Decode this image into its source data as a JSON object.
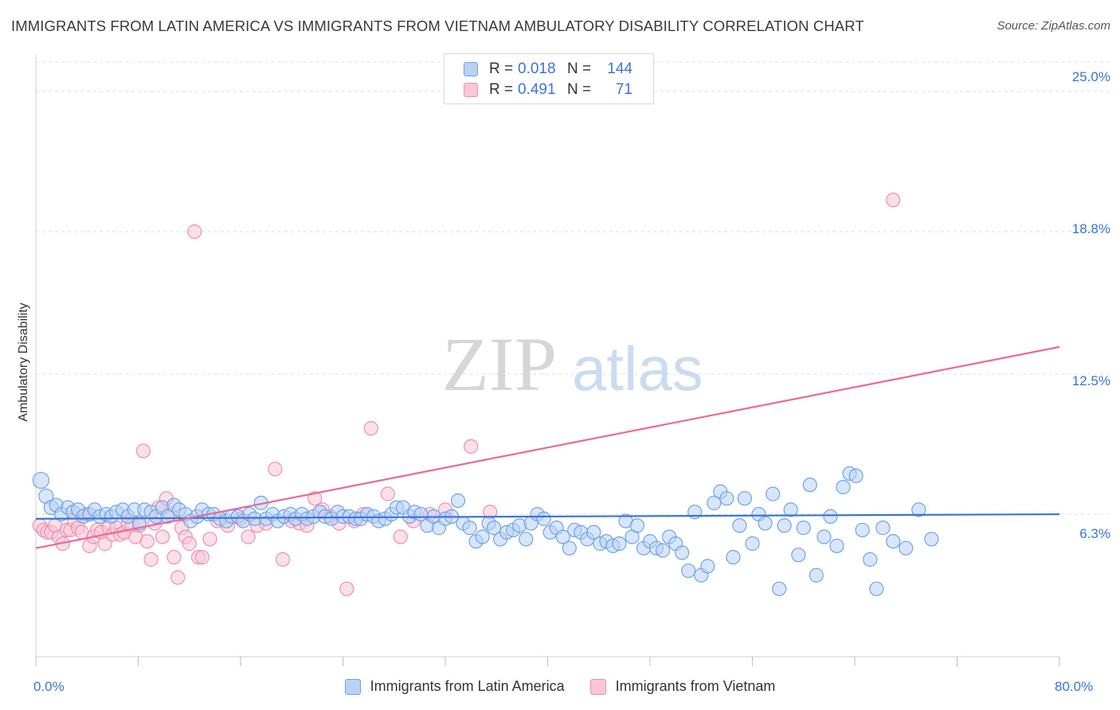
{
  "title": "IMMIGRANTS FROM LATIN AMERICA VS IMMIGRANTS FROM VIETNAM AMBULATORY DISABILITY CORRELATION CHART",
  "source": "Source: ZipAtlas.com",
  "watermark": {
    "zip": "ZIP",
    "atlas": "atlas"
  },
  "legend": {
    "rows": [
      {
        "r_label": "R =",
        "r_value": "0.018",
        "n_label": "N =",
        "n_value": "144"
      },
      {
        "r_label": "R =",
        "r_value": "0.491",
        "n_label": "N =",
        "n_value": "71"
      }
    ]
  },
  "colors": {
    "blue": "#6ea3e8",
    "blue_fill": "#b9d2f4",
    "pink": "#ef8fb0",
    "pink_fill": "#f8c6d6",
    "blue_line": "#3a74d6",
    "pink_line": "#e8699a",
    "tick_text": "#3a74d6"
  },
  "chart_data": {
    "type": "scatter",
    "title": "IMMIGRANTS FROM LATIN AMERICA VS IMMIGRANTS FROM VIETNAM AMBULATORY DISABILITY CORRELATION CHART",
    "ylabel": "Ambulatory Disability",
    "xlabel": "",
    "x_tick_labels": [
      "0.0%",
      "80.0%"
    ],
    "y_tick_labels": [
      "6.3%",
      "12.5%",
      "18.8%",
      "25.0%"
    ],
    "y_ticks": [
      6.3,
      12.5,
      18.8,
      25.0
    ],
    "xlim": [
      0,
      80
    ],
    "ylim": [
      0,
      26.3
    ],
    "grid": "horizontal dashed",
    "legend_position": "bottom",
    "series": [
      {
        "name": "Immigrants from Latin America",
        "color": "#6ea3e8",
        "trend": {
          "x": [
            0,
            80
          ],
          "y": [
            6.1,
            6.3
          ]
        },
        "points": [
          [
            0.4,
            7.8
          ],
          [
            0.8,
            7.1
          ],
          [
            1.2,
            6.6
          ],
          [
            1.6,
            6.7
          ],
          [
            2.0,
            6.3
          ],
          [
            2.5,
            6.6
          ],
          [
            2.9,
            6.4
          ],
          [
            3.3,
            6.5
          ],
          [
            3.7,
            6.2
          ],
          [
            4.2,
            6.3
          ],
          [
            4.6,
            6.5
          ],
          [
            5.0,
            6.2
          ],
          [
            5.5,
            6.3
          ],
          [
            5.9,
            6.2
          ],
          [
            6.3,
            6.4
          ],
          [
            6.8,
            6.5
          ],
          [
            7.2,
            6.2
          ],
          [
            7.7,
            6.5
          ],
          [
            8.1,
            5.9
          ],
          [
            8.5,
            6.5
          ],
          [
            9.0,
            6.4
          ],
          [
            9.4,
            6.2
          ],
          [
            9.9,
            6.6
          ],
          [
            10.3,
            6.2
          ],
          [
            10.8,
            6.7
          ],
          [
            11.2,
            6.5
          ],
          [
            11.7,
            6.3
          ],
          [
            12.1,
            6.0
          ],
          [
            12.6,
            6.2
          ],
          [
            13.0,
            6.5
          ],
          [
            13.5,
            6.3
          ],
          [
            13.9,
            6.3
          ],
          [
            14.4,
            6.1
          ],
          [
            14.9,
            6.0
          ],
          [
            15.3,
            6.2
          ],
          [
            15.8,
            6.2
          ],
          [
            16.2,
            6.0
          ],
          [
            16.7,
            6.3
          ],
          [
            17.1,
            6.1
          ],
          [
            17.6,
            6.8
          ],
          [
            18.0,
            6.1
          ],
          [
            18.5,
            6.3
          ],
          [
            18.9,
            6.0
          ],
          [
            19.4,
            6.2
          ],
          [
            19.9,
            6.3
          ],
          [
            20.3,
            6.1
          ],
          [
            20.8,
            6.3
          ],
          [
            21.2,
            6.1
          ],
          [
            21.7,
            6.2
          ],
          [
            22.2,
            6.4
          ],
          [
            22.6,
            6.2
          ],
          [
            23.1,
            6.1
          ],
          [
            23.6,
            6.4
          ],
          [
            24.0,
            6.2
          ],
          [
            24.5,
            6.2
          ],
          [
            25.0,
            6.1
          ],
          [
            25.4,
            6.1
          ],
          [
            25.9,
            6.3
          ],
          [
            26.4,
            6.2
          ],
          [
            26.8,
            6.0
          ],
          [
            27.3,
            6.1
          ],
          [
            27.8,
            6.3
          ],
          [
            28.2,
            6.6
          ],
          [
            28.7,
            6.6
          ],
          [
            29.2,
            6.2
          ],
          [
            29.6,
            6.4
          ],
          [
            30.1,
            6.3
          ],
          [
            30.6,
            5.8
          ],
          [
            31.1,
            6.2
          ],
          [
            31.5,
            5.7
          ],
          [
            32.0,
            6.1
          ],
          [
            32.5,
            6.2
          ],
          [
            33.0,
            6.9
          ],
          [
            33.4,
            5.9
          ],
          [
            33.9,
            5.7
          ],
          [
            34.4,
            5.1
          ],
          [
            34.9,
            5.3
          ],
          [
            35.4,
            5.9
          ],
          [
            35.8,
            5.7
          ],
          [
            36.3,
            5.2
          ],
          [
            36.8,
            5.5
          ],
          [
            37.3,
            5.6
          ],
          [
            37.8,
            5.8
          ],
          [
            38.3,
            5.2
          ],
          [
            38.7,
            5.9
          ],
          [
            39.2,
            6.3
          ],
          [
            39.7,
            6.1
          ],
          [
            40.2,
            5.5
          ],
          [
            40.7,
            5.7
          ],
          [
            41.2,
            5.3
          ],
          [
            41.7,
            4.8
          ],
          [
            42.1,
            5.6
          ],
          [
            42.6,
            5.5
          ],
          [
            43.1,
            5.2
          ],
          [
            43.6,
            5.5
          ],
          [
            44.1,
            5.0
          ],
          [
            44.6,
            5.1
          ],
          [
            45.1,
            4.9
          ],
          [
            45.6,
            5.0
          ],
          [
            46.1,
            6.0
          ],
          [
            46.6,
            5.3
          ],
          [
            47.0,
            5.8
          ],
          [
            47.5,
            4.8
          ],
          [
            48.0,
            5.1
          ],
          [
            48.5,
            4.8
          ],
          [
            49.0,
            4.7
          ],
          [
            49.5,
            5.3
          ],
          [
            50.0,
            5.0
          ],
          [
            50.5,
            4.6
          ],
          [
            51.0,
            3.8
          ],
          [
            51.5,
            6.4
          ],
          [
            52.0,
            3.6
          ],
          [
            52.5,
            4.0
          ],
          [
            53.0,
            6.8
          ],
          [
            53.5,
            7.3
          ],
          [
            54.0,
            7.0
          ],
          [
            54.5,
            4.4
          ],
          [
            55.0,
            5.8
          ],
          [
            55.4,
            7.0
          ],
          [
            56.0,
            5.0
          ],
          [
            56.5,
            6.3
          ],
          [
            57.0,
            5.9
          ],
          [
            57.6,
            7.2
          ],
          [
            58.1,
            3.0
          ],
          [
            58.5,
            5.8
          ],
          [
            59.0,
            6.5
          ],
          [
            59.6,
            4.5
          ],
          [
            60.0,
            5.7
          ],
          [
            60.5,
            7.6
          ],
          [
            61.0,
            3.6
          ],
          [
            61.6,
            5.3
          ],
          [
            62.1,
            6.2
          ],
          [
            62.6,
            4.9
          ],
          [
            63.1,
            7.5
          ],
          [
            63.6,
            8.1
          ],
          [
            64.1,
            8.0
          ],
          [
            64.6,
            5.6
          ],
          [
            65.2,
            4.3
          ],
          [
            65.7,
            3.0
          ],
          [
            66.2,
            5.7
          ],
          [
            67.0,
            5.1
          ],
          [
            68.0,
            4.8
          ],
          [
            69.0,
            6.5
          ],
          [
            70.0,
            5.2
          ]
        ]
      },
      {
        "name": "Immigrants from Vietnam",
        "color": "#ef8fb0",
        "trend": {
          "x": [
            0,
            80
          ],
          "y": [
            4.8,
            13.7
          ]
        },
        "points": [
          [
            0.3,
            5.8
          ],
          [
            0.6,
            5.6
          ],
          [
            0.9,
            5.5
          ],
          [
            1.2,
            5.5
          ],
          [
            1.5,
            5.8
          ],
          [
            1.8,
            5.3
          ],
          [
            2.1,
            5.0
          ],
          [
            2.4,
            5.6
          ],
          [
            2.7,
            5.6
          ],
          [
            3.0,
            6.0
          ],
          [
            3.3,
            5.7
          ],
          [
            3.6,
            5.5
          ],
          [
            3.9,
            6.3
          ],
          [
            4.2,
            4.9
          ],
          [
            4.5,
            5.3
          ],
          [
            4.8,
            5.6
          ],
          [
            5.1,
            5.5
          ],
          [
            5.4,
            5.0
          ],
          [
            5.7,
            5.7
          ],
          [
            6.0,
            5.4
          ],
          [
            6.3,
            5.7
          ],
          [
            6.6,
            5.4
          ],
          [
            6.9,
            5.5
          ],
          [
            7.2,
            5.9
          ],
          [
            7.5,
            5.8
          ],
          [
            7.8,
            5.3
          ],
          [
            8.1,
            5.8
          ],
          [
            8.4,
            9.1
          ],
          [
            8.7,
            5.1
          ],
          [
            9.0,
            4.3
          ],
          [
            9.3,
            5.9
          ],
          [
            9.6,
            6.6
          ],
          [
            9.9,
            5.3
          ],
          [
            10.2,
            7.0
          ],
          [
            10.5,
            6.3
          ],
          [
            10.8,
            4.4
          ],
          [
            11.1,
            3.5
          ],
          [
            11.4,
            5.7
          ],
          [
            11.7,
            5.3
          ],
          [
            12.0,
            5.0
          ],
          [
            12.4,
            18.8
          ],
          [
            12.7,
            4.4
          ],
          [
            13.0,
            4.4
          ],
          [
            13.6,
            5.2
          ],
          [
            14.2,
            6.0
          ],
          [
            15.0,
            5.8
          ],
          [
            16.0,
            6.1
          ],
          [
            16.6,
            5.3
          ],
          [
            17.3,
            5.8
          ],
          [
            18.0,
            5.9
          ],
          [
            18.7,
            8.3
          ],
          [
            19.3,
            4.3
          ],
          [
            20.0,
            6.0
          ],
          [
            20.6,
            5.9
          ],
          [
            21.2,
            5.8
          ],
          [
            21.8,
            7.0
          ],
          [
            22.4,
            6.5
          ],
          [
            23.0,
            6.2
          ],
          [
            23.7,
            5.9
          ],
          [
            24.3,
            3.0
          ],
          [
            24.9,
            6.0
          ],
          [
            25.6,
            6.3
          ],
          [
            26.2,
            10.1
          ],
          [
            27.5,
            7.2
          ],
          [
            28.5,
            5.3
          ],
          [
            29.5,
            6.0
          ],
          [
            30.8,
            6.3
          ],
          [
            32.0,
            6.5
          ],
          [
            34.0,
            9.3
          ],
          [
            35.5,
            6.4
          ],
          [
            67.0,
            20.2
          ]
        ]
      }
    ]
  },
  "bottom_legend": [
    "Immigrants from Latin America",
    "Immigrants from Vietnam"
  ]
}
